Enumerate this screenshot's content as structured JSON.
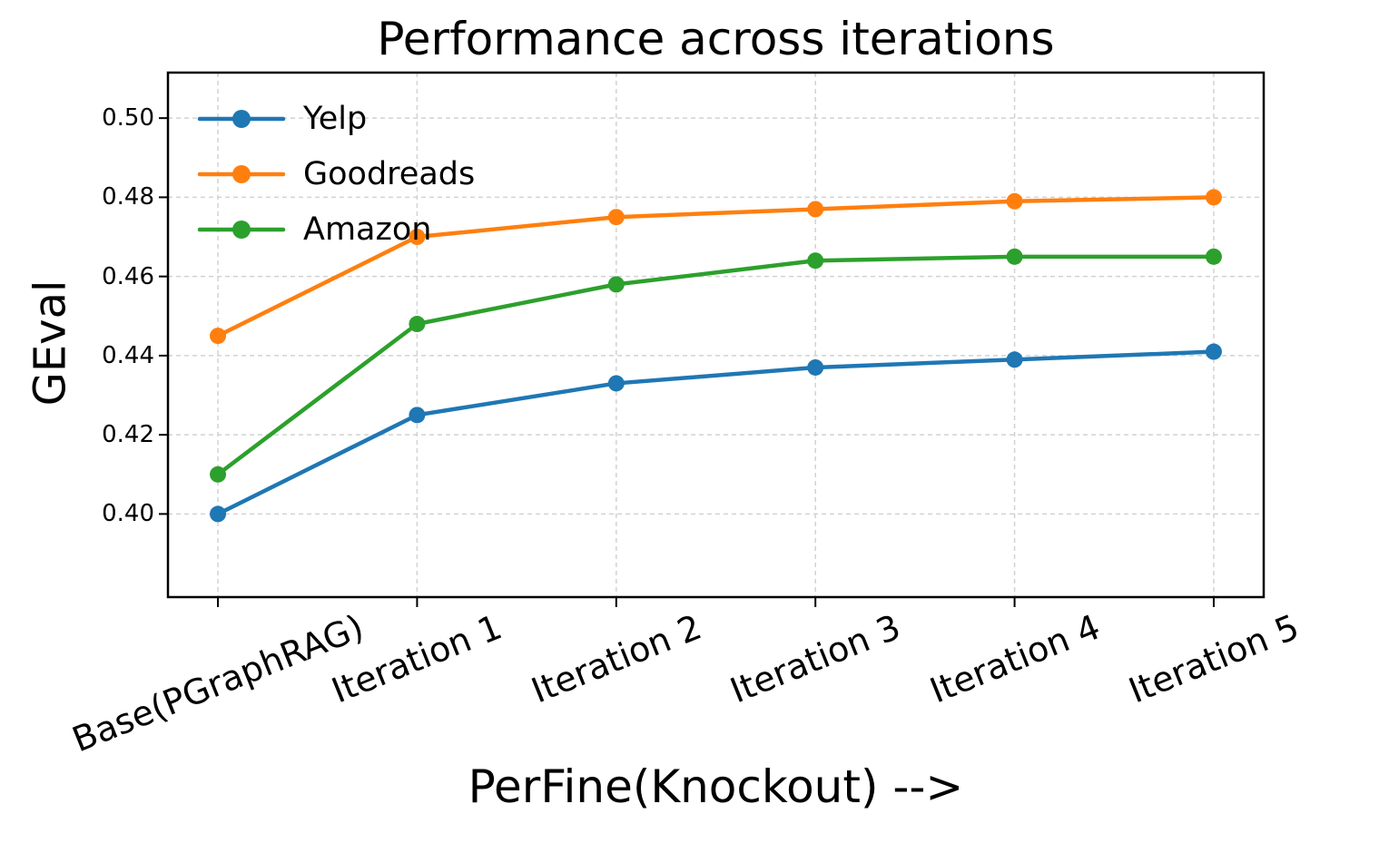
{
  "chart_data": {
    "type": "line",
    "title": "Performance across iterations",
    "xlabel": "PerFine(Knockout) -->",
    "ylabel": "GEval",
    "categories": [
      "Base(PGraphRAG)",
      "Iteration 1",
      "Iteration 2",
      "Iteration 3",
      "Iteration 4",
      "Iteration 5"
    ],
    "series": [
      {
        "name": "Yelp",
        "color": "#1f77b4",
        "values": [
          0.4,
          0.425,
          0.433,
          0.437,
          0.439,
          0.441
        ]
      },
      {
        "name": "Goodreads",
        "color": "#ff7f0e",
        "values": [
          0.445,
          0.47,
          0.475,
          0.477,
          0.479,
          0.48
        ]
      },
      {
        "name": "Amazon",
        "color": "#2ca02c",
        "values": [
          0.41,
          0.448,
          0.458,
          0.464,
          0.465,
          0.465
        ]
      }
    ],
    "yticks": [
      0.4,
      0.42,
      0.44,
      0.46,
      0.48,
      0.5
    ],
    "ytick_labels": [
      "0.40",
      "0.42",
      "0.44",
      "0.46",
      "0.48",
      "0.50"
    ],
    "ylim": [
      0.379,
      0.5115
    ],
    "grid": true,
    "grid_style": "dashed",
    "grid_color": "#d2d2d2",
    "spine_color": "#000000",
    "legend_position": "upper left",
    "marker": "circle"
  }
}
